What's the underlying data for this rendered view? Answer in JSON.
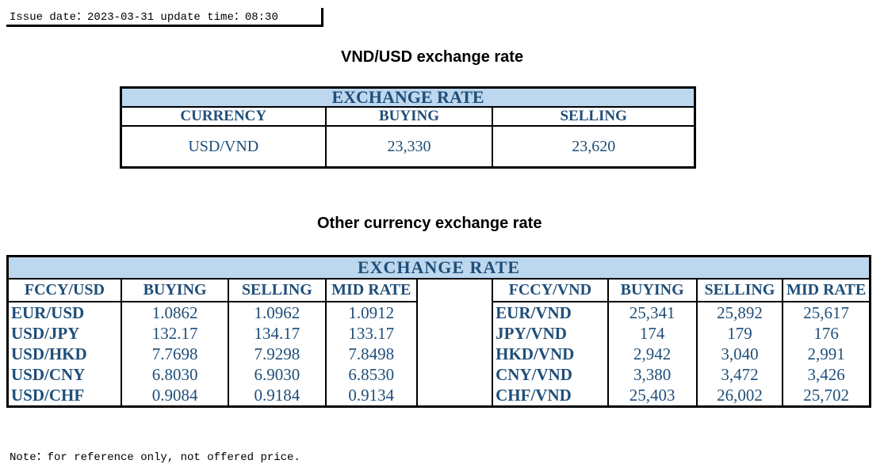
{
  "issue_line": "Issue date：2023-03-31 update time：08:30",
  "vnd_title": "VND/USD exchange rate",
  "vnd_table": {
    "header": "EXCHANGE RATE",
    "columns": [
      "CURRENCY",
      "BUYING",
      "SELLING"
    ],
    "row": [
      "USD/VND",
      "23,330",
      "23,620"
    ]
  },
  "other_title": "Other currency exchange rate",
  "other_table": {
    "header": "EXCHANGE  RATE",
    "left_columns": [
      "FCCY/USD",
      "BUYING",
      "SELLING",
      "MID RATE"
    ],
    "right_columns": [
      "FCCY/VND",
      "BUYING",
      "SELLING",
      "MID RATE"
    ],
    "rows": [
      {
        "l": [
          "EUR/USD",
          "1.0862",
          "1.0962",
          "1.0912"
        ],
        "r": [
          "EUR/VND",
          "25,341",
          "25,892",
          "25,617"
        ]
      },
      {
        "l": [
          "USD/JPY",
          "132.17",
          "134.17",
          "133.17"
        ],
        "r": [
          "JPY/VND",
          "174",
          "179",
          "176"
        ]
      },
      {
        "l": [
          "USD/HKD",
          "7.7698",
          "7.9298",
          "7.8498"
        ],
        "r": [
          "HKD/VND",
          "2,942",
          "3,040",
          "2,991"
        ]
      },
      {
        "l": [
          "USD/CNY",
          "6.8030",
          "6.9030",
          "6.8530"
        ],
        "r": [
          "CNY/VND",
          "3,380",
          "3,472",
          "3,426"
        ]
      },
      {
        "l": [
          "USD/CHF",
          "0.9084",
          "0.9184",
          "0.9134"
        ],
        "r": [
          "CHF/VND",
          "25,403",
          "26,002",
          "25,702"
        ]
      }
    ]
  },
  "note": "Note：for reference only, not offered price."
}
